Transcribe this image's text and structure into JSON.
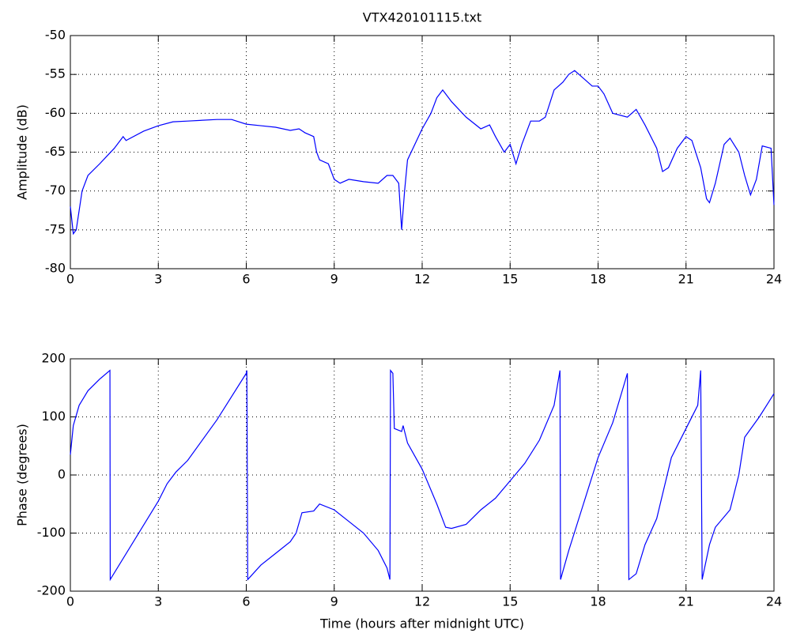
{
  "chart_data": [
    {
      "type": "line",
      "title": "VTX420101115.txt",
      "y_label": "Amplitude (dB)",
      "color": "#0000ff",
      "grid": true,
      "xlim": [
        0,
        24
      ],
      "xticks": [
        0,
        3,
        6,
        9,
        12,
        15,
        18,
        21,
        24
      ],
      "ylim": [
        -80,
        -50
      ],
      "yticks": [
        -80,
        -75,
        -70,
        -65,
        -60,
        -55,
        -50
      ],
      "x": [
        0,
        0.1,
        0.2,
        0.4,
        0.6,
        1,
        1.5,
        1.8,
        1.9,
        2.5,
        3,
        3.5,
        4,
        5,
        5.5,
        6,
        6.5,
        7,
        7.5,
        7.8,
        8,
        8.3,
        8.4,
        8.5,
        8.8,
        9,
        9.2,
        9.5,
        10,
        10.5,
        10.8,
        11,
        11.2,
        11.3,
        11.4,
        11.5,
        12,
        12.3,
        12.5,
        12.7,
        13,
        13.5,
        14,
        14.3,
        14.5,
        14.8,
        15,
        15.2,
        15.4,
        15.7,
        16,
        16.2,
        16.5,
        16.8,
        17,
        17.2,
        17.5,
        17.8,
        18,
        18.2,
        18.5,
        19,
        19.3,
        19.6,
        20,
        20.2,
        20.4,
        20.7,
        21,
        21.2,
        21.5,
        21.7,
        21.8,
        22,
        22.3,
        22.5,
        22.8,
        23,
        23.2,
        23.4,
        23.6,
        23.9,
        24
      ],
      "values": [
        -72,
        -75.5,
        -75,
        -70,
        -68,
        -66.5,
        -64.5,
        -63,
        -63.5,
        -62.3,
        -61.6,
        -61.1,
        -61,
        -60.8,
        -60.8,
        -61.4,
        -61.6,
        -61.8,
        -62.2,
        -62,
        -62.5,
        -63,
        -65,
        -66,
        -66.5,
        -68.5,
        -69,
        -68.5,
        -68.8,
        -69,
        -68,
        -68,
        -69,
        -75,
        -70,
        -66,
        -62,
        -60,
        -58,
        -57,
        -58.5,
        -60.5,
        -62,
        -61.5,
        -63,
        -65,
        -64,
        -66.5,
        -64,
        -61,
        -61,
        -60.5,
        -57,
        -56,
        -55,
        -54.5,
        -55.5,
        -56.5,
        -56.5,
        -57.5,
        -60,
        -60.5,
        -59.5,
        -61.5,
        -64.5,
        -67.5,
        -67,
        -64.5,
        -63,
        -63.5,
        -67,
        -71,
        -71.5,
        -69,
        -64,
        -63.2,
        -65,
        -68,
        -70.5,
        -68.5,
        -64.2,
        -64.5,
        -71.8
      ]
    },
    {
      "type": "line",
      "x_label": "Time (hours after midnight UTC)",
      "y_label": "Phase (degrees)",
      "color": "#0000ff",
      "grid": true,
      "xlim": [
        0,
        24
      ],
      "xticks": [
        0,
        3,
        6,
        9,
        12,
        15,
        18,
        21,
        24
      ],
      "ylim": [
        -200,
        200
      ],
      "yticks": [
        -200,
        -100,
        0,
        100,
        200
      ],
      "x": [
        0,
        0.1,
        0.3,
        0.6,
        1,
        1.35,
        1.36,
        3,
        3.3,
        3.6,
        4,
        5,
        6,
        6.02,
        6.05,
        6.5,
        7,
        7.5,
        7.7,
        7.9,
        8.3,
        8.5,
        9,
        9.5,
        10,
        10.5,
        10.8,
        10.9,
        10.92,
        11,
        11.05,
        11.3,
        11.35,
        11.5,
        12,
        12.5,
        12.8,
        13,
        13.5,
        14,
        14.5,
        15,
        15.5,
        16,
        16.5,
        16.7,
        16.72,
        17,
        17.5,
        18,
        18.5,
        19,
        19.05,
        19.3,
        19.6,
        20,
        20.5,
        21,
        21.4,
        21.5,
        21.55,
        21.8,
        22,
        22.5,
        22.8,
        23,
        23.5,
        24
      ],
      "values": [
        35,
        85,
        120,
        145,
        165,
        180,
        -180,
        -45,
        -15,
        5,
        25,
        95,
        175,
        180,
        -180,
        -155,
        -135,
        -115,
        -100,
        -65,
        -62,
        -50,
        -60,
        -80,
        -100,
        -130,
        -160,
        -180,
        180,
        175,
        80,
        75,
        85,
        55,
        10,
        -50,
        -90,
        -92,
        -85,
        -60,
        -40,
        -10,
        20,
        60,
        120,
        180,
        -180,
        -130,
        -50,
        30,
        90,
        175,
        -180,
        -170,
        -120,
        -75,
        30,
        80,
        120,
        180,
        -180,
        -120,
        -90,
        -60,
        0,
        65,
        100,
        140
      ]
    }
  ]
}
